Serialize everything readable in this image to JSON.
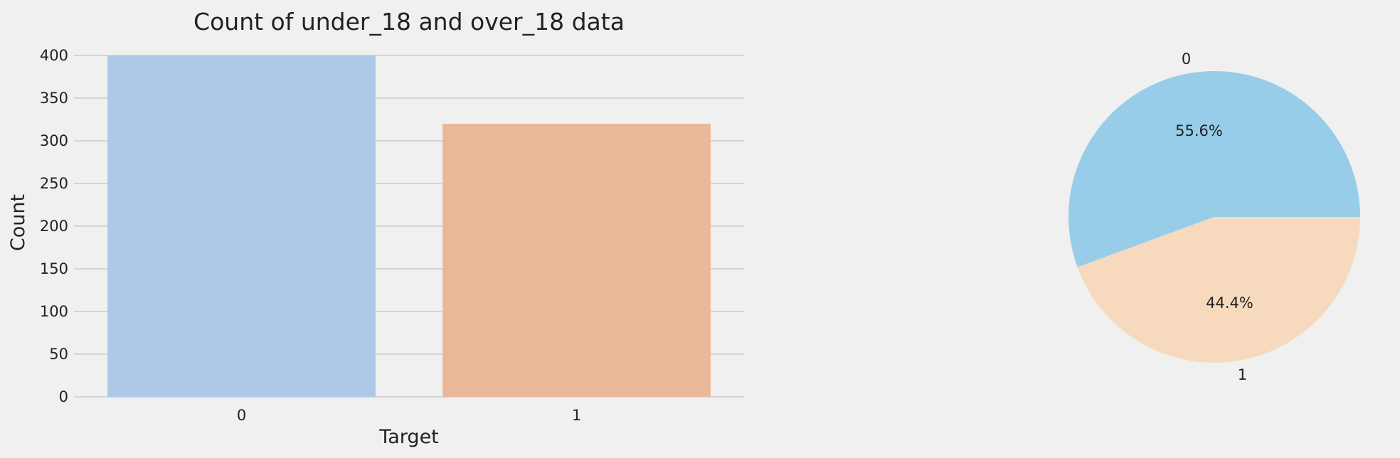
{
  "chart_data": [
    {
      "type": "bar",
      "title": "Count of under_18 and over_18 data",
      "xlabel": "Target",
      "ylabel": "Count",
      "categories": [
        "0",
        "1"
      ],
      "values": [
        400,
        320
      ],
      "ylim": [
        0,
        400
      ],
      "yticks": [
        0,
        50,
        100,
        150,
        200,
        250,
        300,
        350,
        400
      ],
      "colors": [
        "#aec8e8",
        "#e8b898"
      ],
      "grid": true,
      "legend": "none"
    },
    {
      "type": "pie",
      "labels": [
        "0",
        "1"
      ],
      "values": [
        55.6,
        44.4
      ],
      "percent_labels": [
        "55.6%",
        "44.4%"
      ],
      "colors": [
        "#97cde9",
        "#f7dabd"
      ],
      "start_angle": 0,
      "direction": "counterclockwise",
      "legend": "none"
    }
  ]
}
